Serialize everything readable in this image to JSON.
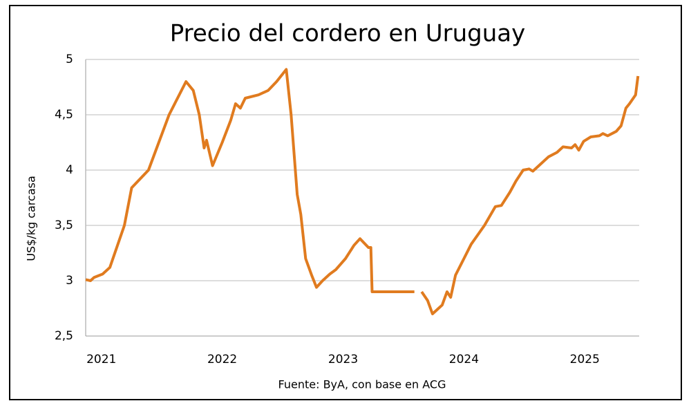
{
  "chart_data": {
    "type": "line",
    "title": "Precio del cordero en Uruguay",
    "y_label": "US$/kg carcasa",
    "source": "Fuente: ByA, con base en ACG",
    "x": [
      2020.87,
      2020.91,
      2020.94,
      2021.01,
      2021.07,
      2021.19,
      2021.25,
      2021.39,
      2021.56,
      2021.7,
      2021.76,
      2021.81,
      2021.85,
      2021.87,
      2021.92,
      2022.0,
      2022.07,
      2022.11,
      2022.15,
      2022.19,
      2022.3,
      2022.38,
      2022.45,
      2022.53,
      2022.57,
      2022.62,
      2022.65,
      2022.69,
      2022.74,
      2022.78,
      2022.83,
      2022.89,
      2022.94,
      2023.02,
      2023.09,
      2023.14,
      2023.21,
      2023.23,
      2023.24,
      2023.59,
      2023.62,
      2023.65,
      2023.7,
      2023.74,
      2023.82,
      2023.86,
      2023.89,
      2023.93,
      2024.0,
      2024.06,
      2024.17,
      2024.26,
      2024.31,
      2024.38,
      2024.43,
      2024.49,
      2024.54,
      2024.57,
      2024.63,
      2024.7,
      2024.77,
      2024.82,
      2024.89,
      2024.92,
      2024.95,
      2024.99,
      2025.05,
      2025.12,
      2025.15,
      2025.19,
      2025.26,
      2025.3,
      2025.34,
      2025.37,
      2025.42,
      2025.44
    ],
    "series": [
      {
        "name": "Precio",
        "color": "#e07b1f",
        "values": [
          3.01,
          3.0,
          3.03,
          3.06,
          3.12,
          3.5,
          3.84,
          4.0,
          4.5,
          4.8,
          4.72,
          4.5,
          4.2,
          4.27,
          4.04,
          4.25,
          4.45,
          4.6,
          4.56,
          4.65,
          4.68,
          4.72,
          4.8,
          4.91,
          4.5,
          3.78,
          3.6,
          3.2,
          3.05,
          2.94,
          3.0,
          3.06,
          3.1,
          3.2,
          3.32,
          3.38,
          3.3,
          3.3,
          2.9,
          2.9,
          null,
          2.9,
          2.82,
          2.7,
          2.78,
          2.9,
          2.85,
          3.05,
          3.2,
          3.33,
          3.5,
          3.67,
          3.68,
          3.8,
          3.9,
          4.0,
          4.01,
          3.99,
          4.05,
          4.12,
          4.16,
          4.21,
          4.2,
          4.23,
          4.18,
          4.26,
          4.3,
          4.31,
          4.33,
          4.31,
          4.35,
          4.4,
          4.56,
          4.6,
          4.68,
          4.85
        ]
      }
    ],
    "xlim": [
      2020.87,
      2025.45
    ],
    "xticks": [
      2021,
      2022,
      2023,
      2024,
      2025
    ],
    "ylim": [
      2.5,
      5
    ],
    "yticks": [
      {
        "value": 2.5,
        "label": "2,5"
      },
      3,
      {
        "value": 3.5,
        "label": "3,5"
      },
      4,
      {
        "value": 4.5,
        "label": "4,5"
      },
      5
    ],
    "grid": true
  }
}
